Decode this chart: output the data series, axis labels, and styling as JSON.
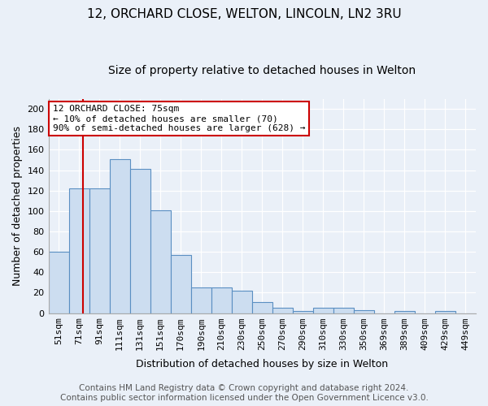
{
  "title1": "12, ORCHARD CLOSE, WELTON, LINCOLN, LN2 3RU",
  "title2": "Size of property relative to detached houses in Welton",
  "xlabel": "Distribution of detached houses by size in Welton",
  "ylabel": "Number of detached properties",
  "bin_labels": [
    "51sqm",
    "71sqm",
    "91sqm",
    "111sqm",
    "131sqm",
    "151sqm",
    "170sqm",
    "190sqm",
    "210sqm",
    "230sqm",
    "250sqm",
    "270sqm",
    "290sqm",
    "310sqm",
    "330sqm",
    "350sqm",
    "369sqm",
    "389sqm",
    "409sqm",
    "429sqm",
    "449sqm"
  ],
  "bar_heights": [
    60,
    122,
    122,
    151,
    141,
    101,
    57,
    25,
    25,
    22,
    11,
    5,
    2,
    5,
    5,
    3,
    0,
    2,
    0,
    2,
    0
  ],
  "bar_color": "#ccddf0",
  "bar_edge_color": "#5a8fc2",
  "red_line_x": 1.2,
  "annotation_line1": "12 ORCHARD CLOSE: 75sqm",
  "annotation_line2": "← 10% of detached houses are smaller (70)",
  "annotation_line3": "90% of semi-detached houses are larger (628) →",
  "annotation_box_edge": "#cc0000",
  "footer_text": "Contains HM Land Registry data © Crown copyright and database right 2024.\nContains public sector information licensed under the Open Government Licence v3.0.",
  "ylim": [
    0,
    210
  ],
  "yticks": [
    0,
    20,
    40,
    60,
    80,
    100,
    120,
    140,
    160,
    180,
    200
  ],
  "background_color": "#eaf0f8",
  "grid_color": "#ffffff",
  "title_fontsize": 11,
  "subtitle_fontsize": 10,
  "axis_label_fontsize": 9,
  "tick_fontsize": 8,
  "annotation_fontsize": 8,
  "footer_fontsize": 7.5
}
